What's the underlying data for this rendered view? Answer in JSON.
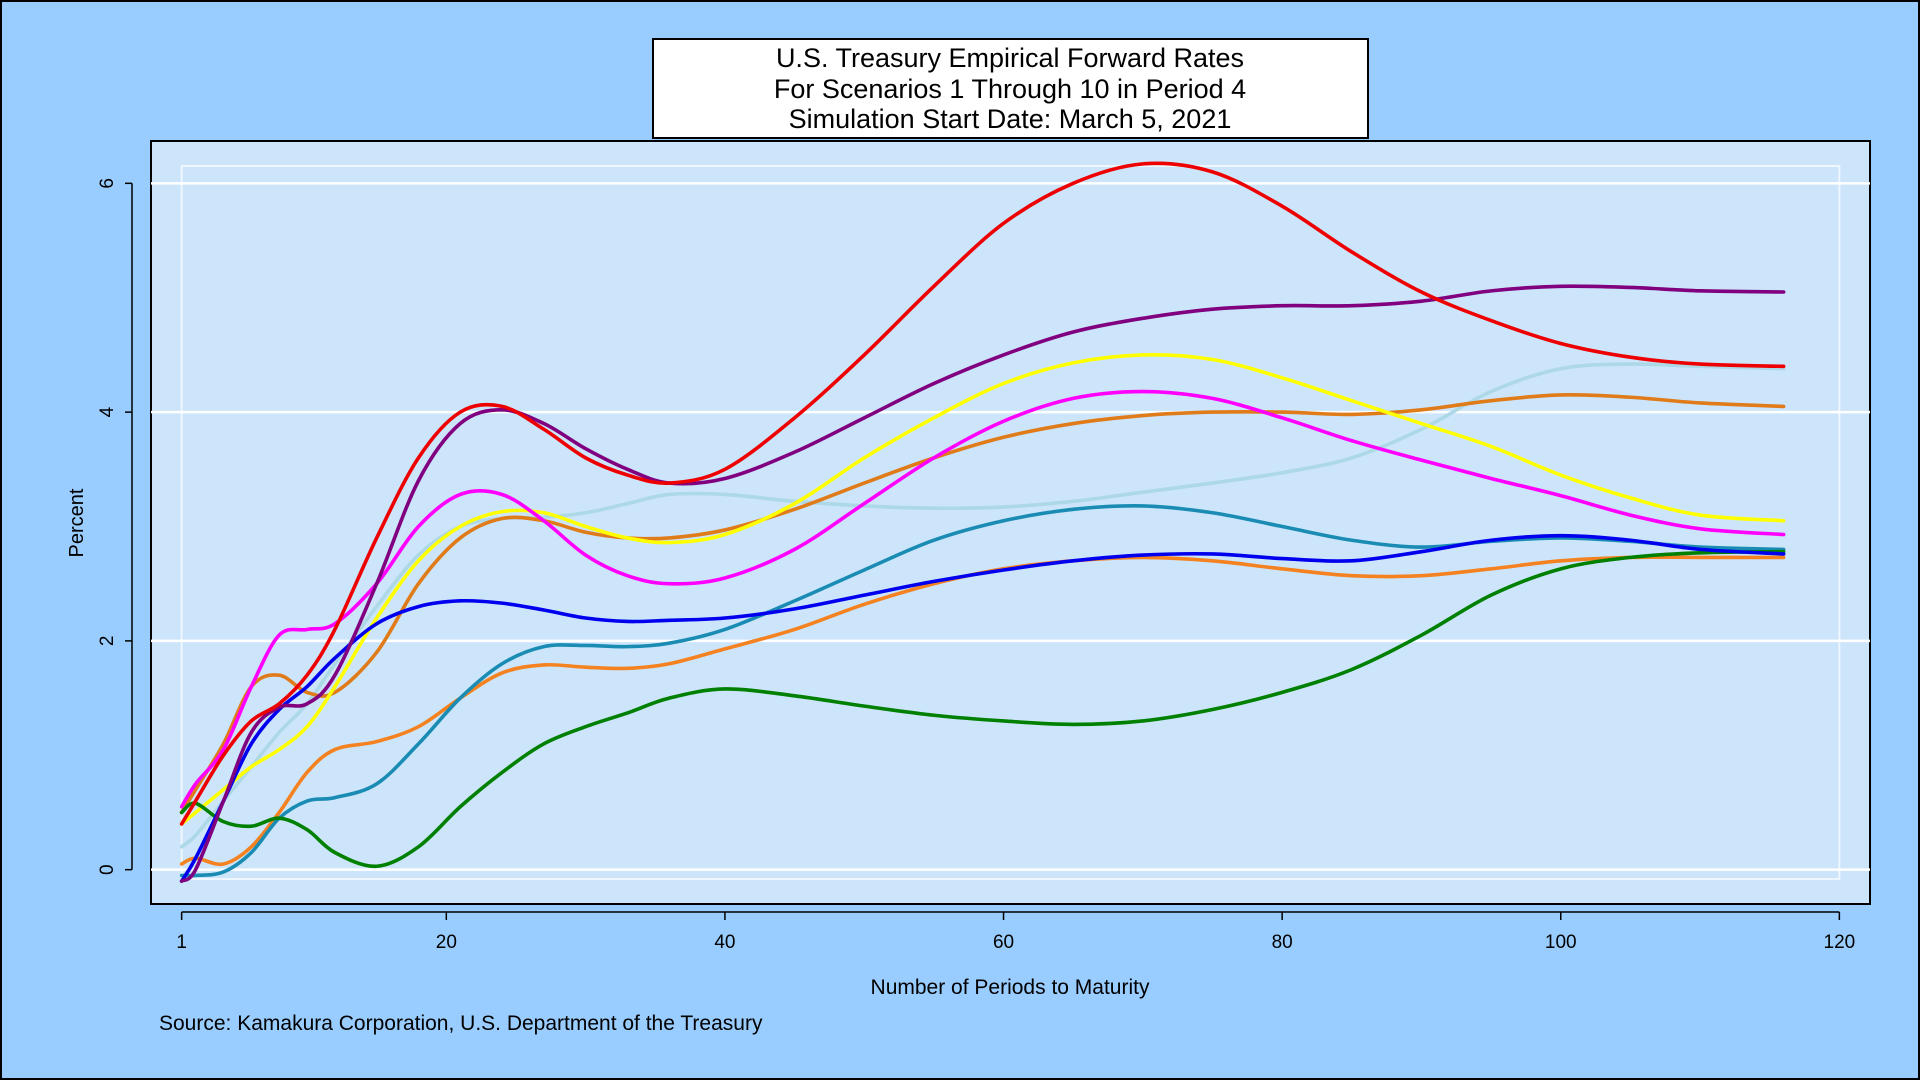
{
  "chart_data": {
    "type": "line",
    "title": [
      "U.S. Treasury Empirical Forward Rates",
      "For Scenarios 1 Through 10 in Period 4",
      "Simulation Start Date: March 5, 2021"
    ],
    "x_label": "Number of Periods to Maturity",
    "y_label": "Percent",
    "source": "Source: Kamakura Corporation, U.S. Department of the Treasury",
    "xlim": [
      -1.2,
      122.2
    ],
    "ylim": [
      -0.3,
      6.37
    ],
    "xticks": [
      1,
      20,
      40,
      60,
      80,
      100,
      120
    ],
    "yticks": [
      0,
      2,
      4,
      6
    ],
    "grid": true,
    "x": [
      1,
      2,
      4,
      6,
      8,
      10,
      12,
      15,
      18,
      21,
      24,
      27,
      30,
      33,
      36,
      40,
      45,
      50,
      55,
      60,
      65,
      70,
      75,
      80,
      85,
      90,
      95,
      100,
      105,
      110,
      116
    ],
    "series": [
      {
        "color": "#add8e6",
        "values": [
          0.2,
          0.3,
          0.6,
          0.9,
          1.2,
          1.45,
          1.8,
          2.3,
          2.75,
          3.0,
          3.07,
          3.08,
          3.12,
          3.2,
          3.28,
          3.28,
          3.22,
          3.18,
          3.16,
          3.17,
          3.22,
          3.3,
          3.38,
          3.47,
          3.6,
          3.85,
          4.18,
          4.38,
          4.42,
          4.4,
          4.38
        ]
      },
      {
        "color": "#e07b1a",
        "values": [
          0.5,
          0.7,
          1.1,
          1.6,
          1.7,
          1.55,
          1.55,
          1.9,
          2.5,
          2.9,
          3.07,
          3.05,
          2.95,
          2.9,
          2.9,
          2.97,
          3.15,
          3.38,
          3.6,
          3.78,
          3.9,
          3.97,
          4.0,
          4.0,
          3.98,
          4.02,
          4.1,
          4.15,
          4.13,
          4.08,
          4.05
        ]
      },
      {
        "color": "#f58220",
        "values": [
          0.05,
          0.1,
          0.05,
          0.2,
          0.5,
          0.85,
          1.05,
          1.12,
          1.25,
          1.5,
          1.72,
          1.79,
          1.77,
          1.76,
          1.8,
          1.93,
          2.1,
          2.32,
          2.5,
          2.63,
          2.7,
          2.73,
          2.7,
          2.63,
          2.57,
          2.57,
          2.63,
          2.7,
          2.73,
          2.73,
          2.73
        ]
      },
      {
        "color": "#1a8cb3",
        "values": [
          -0.05,
          -0.05,
          -0.02,
          0.15,
          0.45,
          0.6,
          0.63,
          0.75,
          1.1,
          1.5,
          1.8,
          1.95,
          1.96,
          1.95,
          1.98,
          2.1,
          2.35,
          2.62,
          2.88,
          3.05,
          3.15,
          3.18,
          3.12,
          3.0,
          2.88,
          2.82,
          2.87,
          2.9,
          2.87,
          2.82,
          2.8
        ]
      },
      {
        "color": "#ffff00",
        "values": [
          0.4,
          0.5,
          0.7,
          0.9,
          1.05,
          1.25,
          1.6,
          2.2,
          2.7,
          3.0,
          3.13,
          3.12,
          3.0,
          2.9,
          2.86,
          2.93,
          3.2,
          3.6,
          3.95,
          4.25,
          4.43,
          4.5,
          4.46,
          4.3,
          4.1,
          3.9,
          3.7,
          3.45,
          3.25,
          3.1,
          3.05
        ]
      },
      {
        "color": "#ff00ff",
        "values": [
          0.55,
          0.75,
          1.05,
          1.6,
          2.05,
          2.1,
          2.15,
          2.5,
          3.0,
          3.28,
          3.28,
          3.05,
          2.75,
          2.57,
          2.5,
          2.55,
          2.8,
          3.2,
          3.6,
          3.92,
          4.12,
          4.18,
          4.12,
          3.95,
          3.75,
          3.58,
          3.42,
          3.27,
          3.1,
          2.98,
          2.93
        ]
      },
      {
        "color": "#008000",
        "values": [
          0.5,
          0.58,
          0.42,
          0.38,
          0.45,
          0.35,
          0.15,
          0.03,
          0.2,
          0.55,
          0.85,
          1.1,
          1.25,
          1.37,
          1.5,
          1.58,
          1.52,
          1.43,
          1.35,
          1.3,
          1.27,
          1.3,
          1.4,
          1.55,
          1.75,
          2.05,
          2.4,
          2.63,
          2.73,
          2.77,
          2.78
        ]
      },
      {
        "color": "#0000ee",
        "values": [
          -0.1,
          0.1,
          0.6,
          1.1,
          1.4,
          1.6,
          1.85,
          2.15,
          2.3,
          2.35,
          2.33,
          2.27,
          2.2,
          2.17,
          2.18,
          2.2,
          2.28,
          2.4,
          2.52,
          2.62,
          2.7,
          2.75,
          2.76,
          2.72,
          2.7,
          2.78,
          2.88,
          2.92,
          2.88,
          2.8,
          2.76
        ]
      },
      {
        "color": "#800080",
        "values": [
          -0.1,
          0.0,
          0.6,
          1.2,
          1.42,
          1.45,
          1.7,
          2.5,
          3.4,
          3.9,
          4.02,
          3.9,
          3.68,
          3.5,
          3.38,
          3.42,
          3.65,
          3.95,
          4.25,
          4.5,
          4.7,
          4.82,
          4.9,
          4.93,
          4.93,
          4.97,
          5.06,
          5.1,
          5.09,
          5.06,
          5.05
        ]
      },
      {
        "color": "#ee0000",
        "values": [
          0.4,
          0.6,
          1.0,
          1.3,
          1.45,
          1.7,
          2.1,
          2.9,
          3.6,
          4.0,
          4.05,
          3.85,
          3.6,
          3.45,
          3.38,
          3.5,
          3.95,
          4.5,
          5.1,
          5.65,
          6.0,
          6.17,
          6.1,
          5.8,
          5.4,
          5.05,
          4.8,
          4.6,
          4.48,
          4.42,
          4.4
        ]
      }
    ]
  }
}
